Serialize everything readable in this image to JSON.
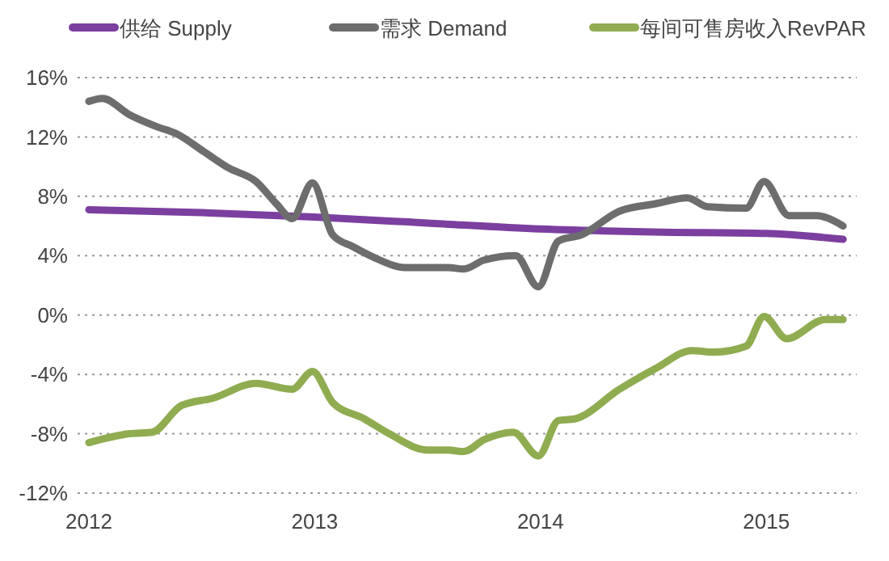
{
  "chart_data": {
    "type": "line",
    "xlim": [
      2011.95,
      2015.4
    ],
    "xticks": [
      2012,
      2013,
      2014,
      2015
    ],
    "ylim": [
      -12,
      16
    ],
    "yticks": [
      {
        "value": -12,
        "label": "-12%"
      },
      {
        "value": -8,
        "label": "-8%"
      },
      {
        "value": -4,
        "label": "-4%"
      },
      {
        "value": 0,
        "label": "0%"
      },
      {
        "value": 4,
        "label": "4%"
      },
      {
        "value": 8,
        "label": "8%"
      },
      {
        "value": 12,
        "label": "12%"
      },
      {
        "value": 16,
        "label": "16%"
      }
    ],
    "grid": "y",
    "legend": "top",
    "line_style": "solid",
    "marker": "none",
    "series": [
      {
        "name": "供给 Supply",
        "color": "#7b3fa0",
        "x": [
          2012.0,
          2012.5,
          2013.0,
          2013.5,
          2014.0,
          2014.5,
          2015.0,
          2015.34
        ],
        "values": [
          7.1,
          6.9,
          6.6,
          6.2,
          5.8,
          5.6,
          5.5,
          5.1
        ]
      },
      {
        "name": "需求 Demand",
        "color": "#6d6d6d",
        "x": [
          2012.0,
          2012.06,
          2012.18,
          2012.3,
          2012.39,
          2012.51,
          2012.62,
          2012.74,
          2012.83,
          2012.9,
          2012.99,
          2013.08,
          2013.17,
          2013.26,
          2013.4,
          2013.59,
          2013.66,
          2013.75,
          2013.89,
          2013.99,
          2014.08,
          2014.18,
          2014.35,
          2014.51,
          2014.65,
          2014.74,
          2014.91,
          2014.99,
          2015.1,
          2015.22,
          2015.34
        ],
        "values": [
          14.4,
          14.6,
          13.5,
          12.7,
          12.2,
          11.0,
          9.9,
          9.0,
          7.5,
          6.5,
          8.9,
          5.4,
          4.6,
          3.9,
          3.2,
          3.2,
          3.1,
          3.7,
          4.0,
          1.9,
          5.0,
          5.4,
          7.0,
          7.5,
          7.9,
          7.3,
          7.2,
          9.0,
          6.7,
          6.7,
          6.0
        ]
      },
      {
        "name": "每间可售房收入RevPAR",
        "color": "#8fac50",
        "x": [
          2012.0,
          2012.18,
          2012.28,
          2012.41,
          2012.55,
          2012.74,
          2012.9,
          2012.99,
          2013.08,
          2013.22,
          2013.33,
          2013.5,
          2013.59,
          2013.66,
          2013.75,
          2013.88,
          2013.99,
          2014.08,
          2014.15,
          2014.35,
          2014.51,
          2014.67,
          2014.77,
          2014.91,
          2014.99,
          2015.09,
          2015.26,
          2015.34
        ],
        "values": [
          -8.6,
          -8.0,
          -7.9,
          -6.1,
          -5.6,
          -4.6,
          -5.0,
          -3.8,
          -5.9,
          -7.0,
          -8.0,
          -9.1,
          -9.1,
          -9.2,
          -8.4,
          -7.9,
          -9.5,
          -7.1,
          -7.0,
          -5.0,
          -3.6,
          -2.4,
          -2.5,
          -2.1,
          -0.1,
          -1.6,
          -0.3,
          -0.3
        ]
      }
    ]
  }
}
